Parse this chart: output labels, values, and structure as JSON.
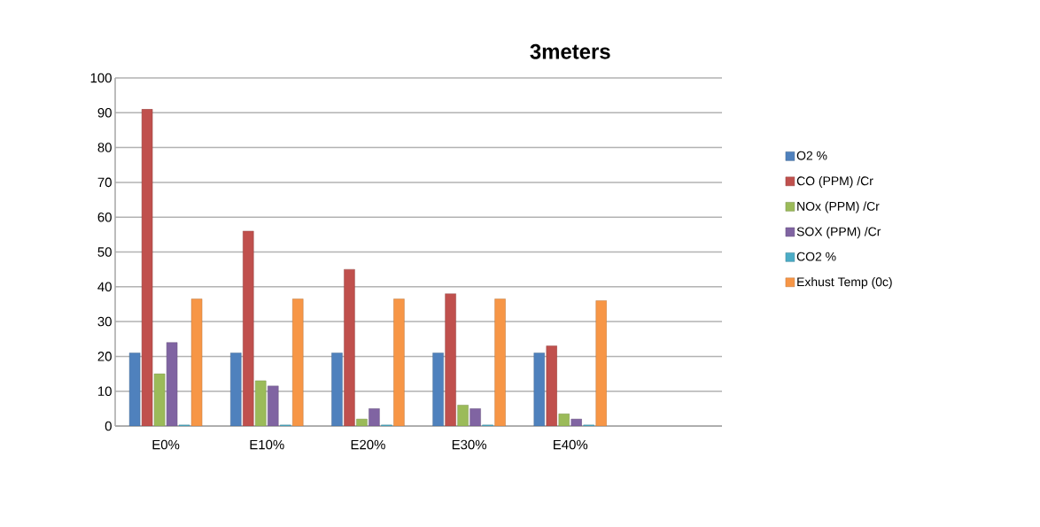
{
  "chart_data": {
    "type": "bar",
    "title": "3meters",
    "categories": [
      "E0%",
      "E10%",
      "E20%",
      "E30%",
      "E40%",
      null
    ],
    "series": [
      {
        "name": "O2 %",
        "color": "#4f81bd",
        "values": [
          21,
          21,
          21,
          21,
          21,
          null
        ]
      },
      {
        "name": "CO (PPM) /Cr",
        "color": "#c0504d",
        "values": [
          91,
          56,
          45,
          38,
          23,
          null
        ]
      },
      {
        "name": "NOx (PPM) /Cr",
        "color": "#9bbb59",
        "values": [
          15,
          13,
          2,
          6,
          3.5,
          null
        ]
      },
      {
        "name": "SOX (PPM) /Cr",
        "color": "#8064a2",
        "values": [
          24,
          11.5,
          5,
          5,
          2,
          null
        ]
      },
      {
        "name": "CO2 %",
        "color": "#4bacc6",
        "values": [
          0.3,
          0.3,
          0.3,
          0.3,
          0.3,
          null
        ]
      },
      {
        "name": "Exhust Temp (0c)",
        "color": "#f79646",
        "values": [
          36.5,
          36.5,
          36.5,
          36.5,
          36,
          null
        ]
      }
    ],
    "ylim": [
      0,
      100
    ],
    "yticks": [
      0,
      10,
      20,
      30,
      40,
      50,
      60,
      70,
      80,
      90,
      100
    ],
    "grid": "y",
    "legend": "right"
  }
}
